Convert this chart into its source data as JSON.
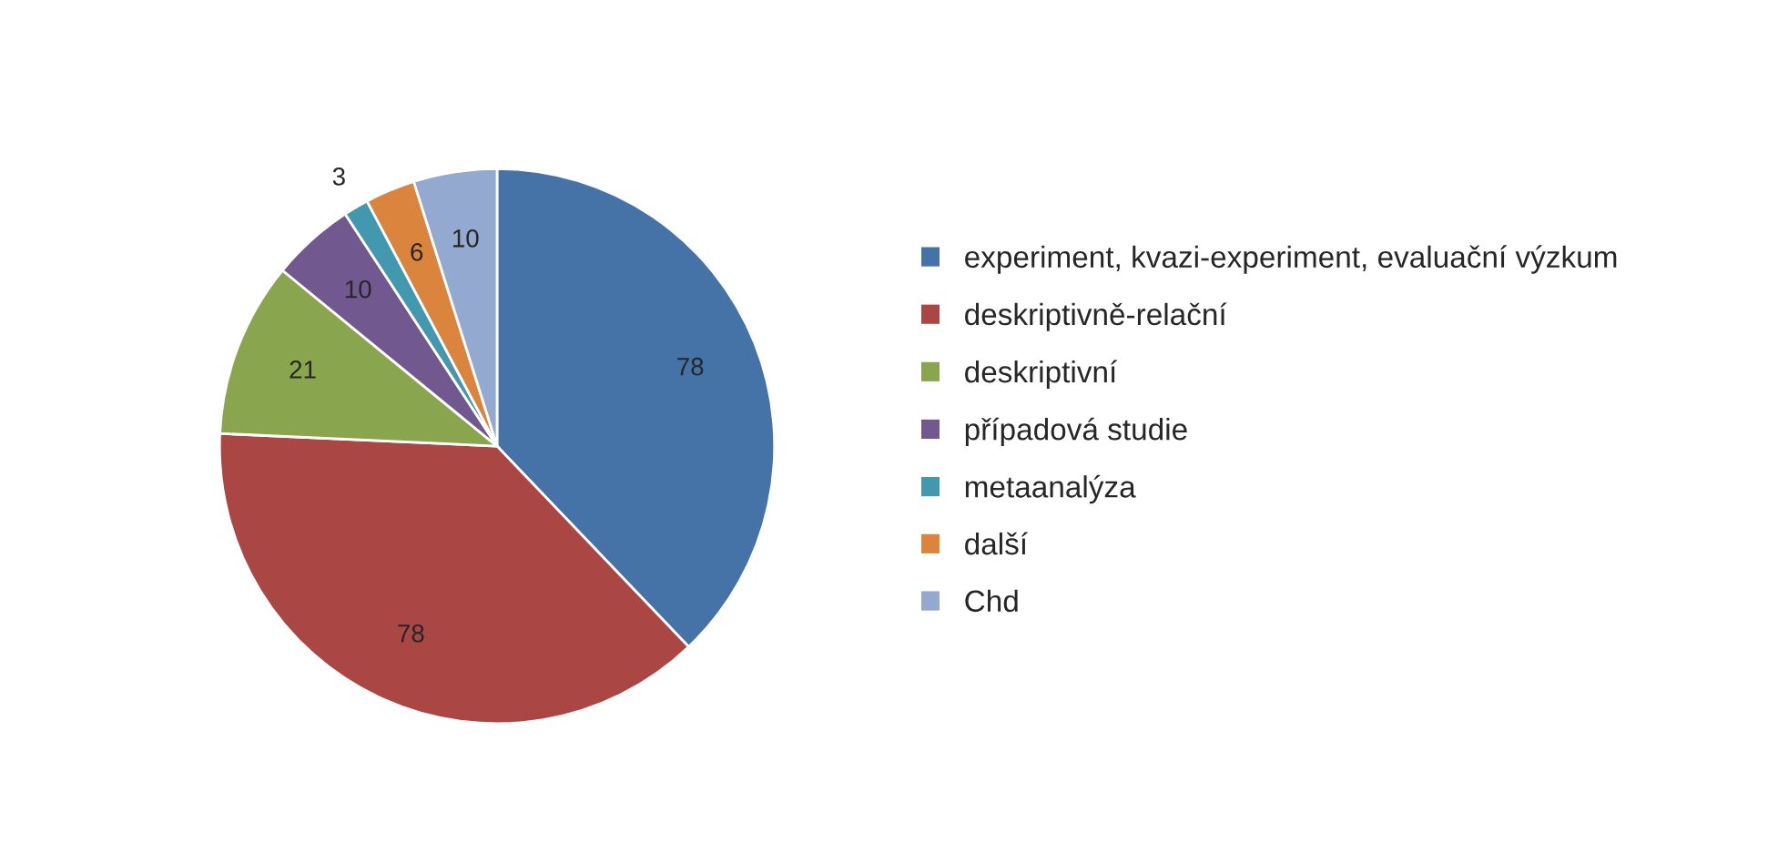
{
  "chart_data": {
    "type": "pie",
    "categories": [
      "experiment, kvazi-experiment, evaluační výzkum",
      "deskriptivně-relační",
      "deskriptivní",
      "případová studie",
      "metaanalýza",
      "další",
      "Chd"
    ],
    "values": [
      78,
      78,
      21,
      10,
      3,
      6,
      10
    ],
    "colors": [
      "#4572a7",
      "#aa4643",
      "#89a54e",
      "#71588f",
      "#4198af",
      "#db843d",
      "#93a9cf"
    ],
    "data_labels": true,
    "legend": "right"
  }
}
